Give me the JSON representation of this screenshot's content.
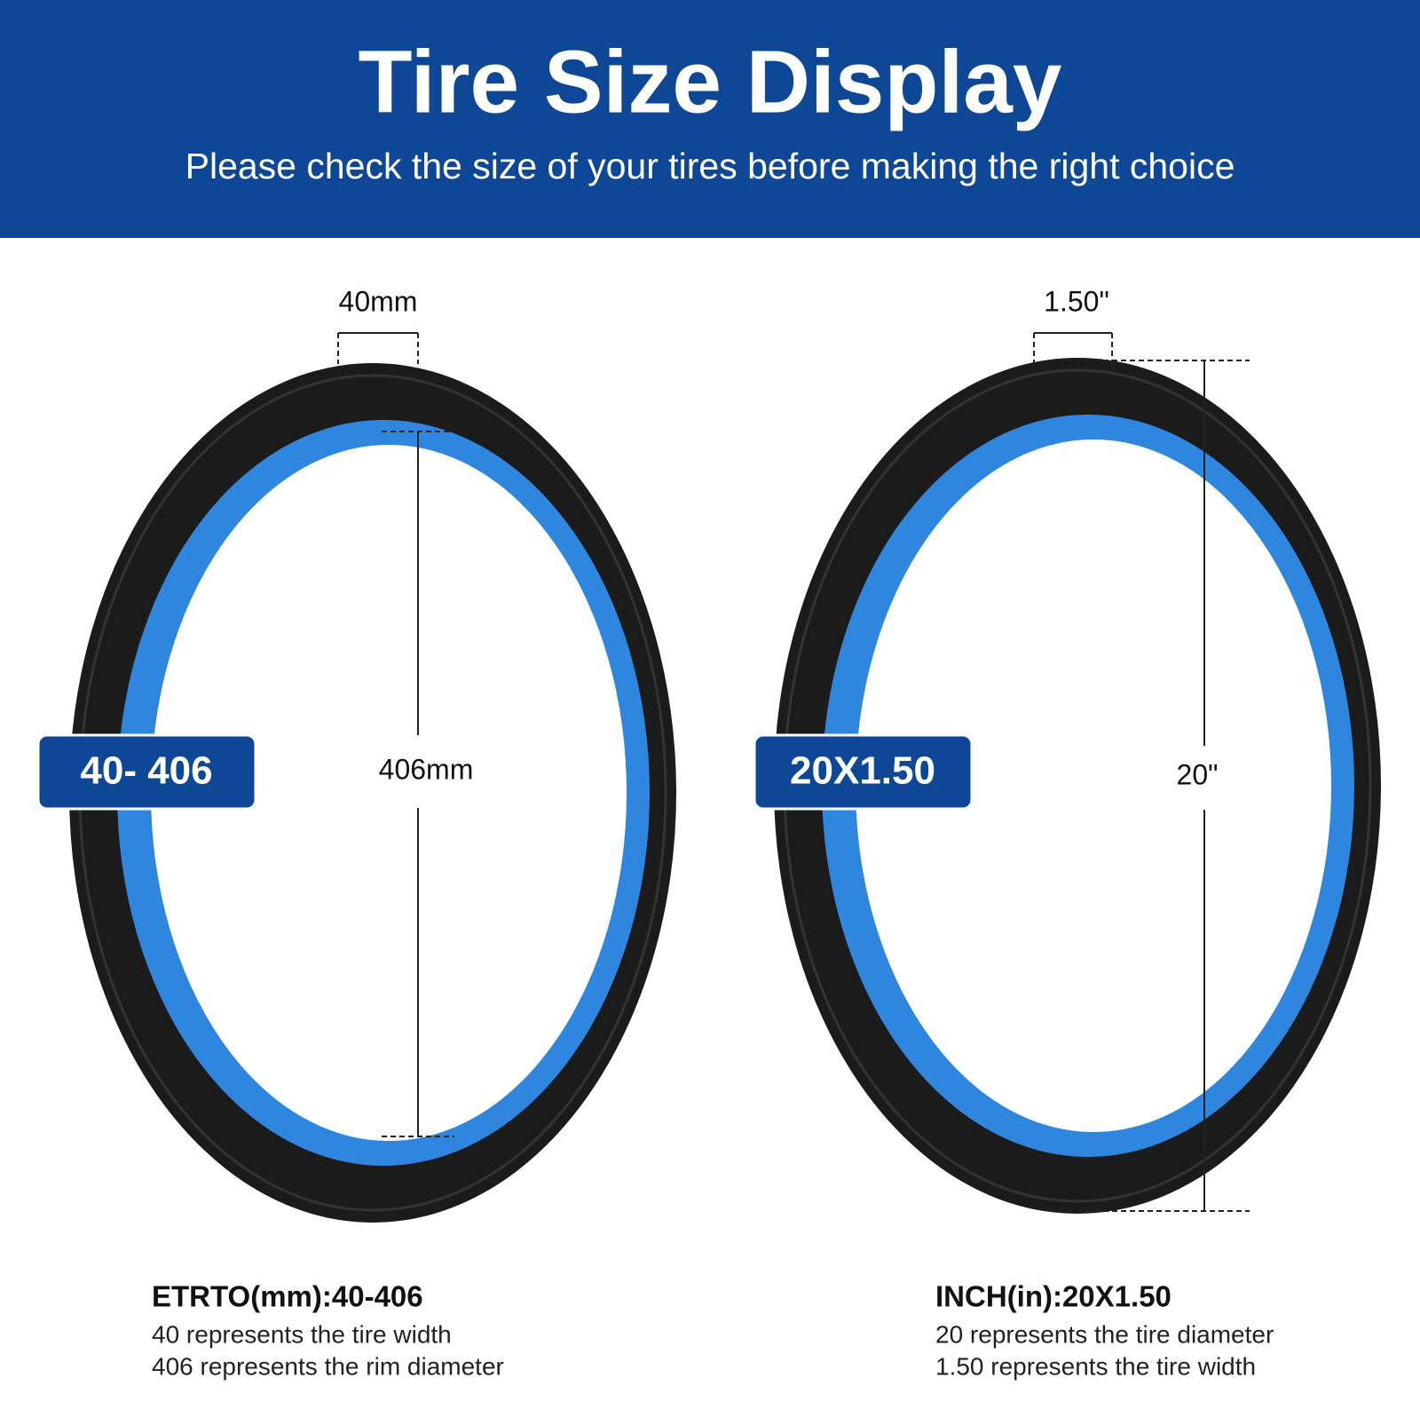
{
  "header": {
    "title": "Tire Size Display",
    "subtitle": "Please check the size of your tires before making the right choice"
  },
  "tires": [
    {
      "width_label": "40mm",
      "diameter_label": "406mm",
      "badge": "40- 406",
      "spec": {
        "heading": "ETRTO(mm):40-406",
        "lines": [
          "40 represents the tire width",
          "406 represents the rim diameter"
        ]
      }
    },
    {
      "width_label": "1.50\"",
      "diameter_label": "20\"",
      "badge": "20X1.50",
      "spec": {
        "heading": "INCH(in):20X1.50",
        "lines": [
          "20 represents the tire diameter",
          "1.50 represents the tire width"
        ]
      }
    }
  ]
}
